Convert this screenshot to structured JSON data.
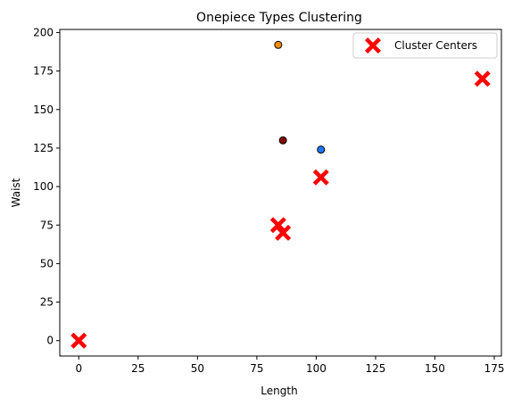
{
  "chart_data": {
    "type": "scatter",
    "title": "Onepiece Types Clustering",
    "xlabel": "Length",
    "ylabel": "Waist",
    "xlim": [
      -8,
      178
    ],
    "ylim": [
      -10,
      202
    ],
    "xticks": [
      0,
      25,
      50,
      75,
      100,
      125,
      150,
      175
    ],
    "yticks": [
      0,
      25,
      50,
      75,
      100,
      125,
      150,
      175,
      200
    ],
    "grid": false,
    "legend_position": "top-right",
    "points": [
      {
        "x": 84,
        "y": 192,
        "color": "#ff8c00"
      },
      {
        "x": 86,
        "y": 130,
        "color": "#8b0000"
      },
      {
        "x": 102,
        "y": 124,
        "color": "#1e78ff"
      }
    ],
    "centers": {
      "name": "Cluster Centers",
      "color": "#ff0000",
      "points": [
        {
          "x": 0,
          "y": 0
        },
        {
          "x": 84,
          "y": 75
        },
        {
          "x": 86,
          "y": 70
        },
        {
          "x": 102,
          "y": 106
        },
        {
          "x": 170,
          "y": 170
        }
      ]
    }
  }
}
